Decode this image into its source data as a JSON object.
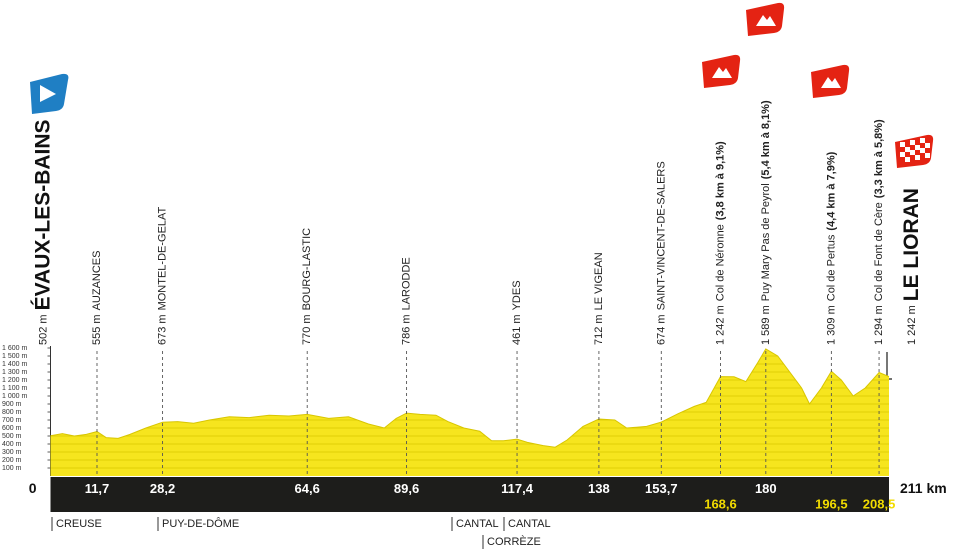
{
  "chart_data": {
    "type": "area",
    "color": "#f6e51e",
    "grid_color": "#d9c800",
    "band_color": "#1d1d1b",
    "x": [
      0,
      3,
      6,
      9,
      11.7,
      14,
      17,
      20,
      24,
      28.2,
      32,
      36,
      40,
      45,
      50,
      55,
      60,
      64.6,
      70,
      75,
      80,
      84,
      87,
      89.6,
      93,
      97,
      100,
      104,
      108,
      111,
      114,
      117.4,
      120,
      124,
      127,
      130,
      134,
      138,
      142,
      145,
      150,
      153.7,
      158,
      162,
      165,
      168.6,
      172,
      175,
      178,
      180,
      183,
      186,
      189,
      191,
      194,
      196.5,
      199,
      202,
      205,
      208.5,
      211
    ],
    "values": [
      502,
      530,
      500,
      520,
      555,
      480,
      470,
      520,
      600,
      673,
      680,
      660,
      700,
      740,
      730,
      760,
      750,
      770,
      720,
      740,
      650,
      600,
      720,
      786,
      770,
      760,
      680,
      600,
      560,
      440,
      440,
      461,
      420,
      380,
      360,
      450,
      620,
      712,
      700,
      600,
      620,
      674,
      780,
      870,
      920,
      1242,
      1240,
      1180,
      1420,
      1589,
      1500,
      1300,
      1100,
      900,
      1100,
      1309,
      1200,
      1000,
      1100,
      1294,
      1242
    ],
    "xlim": [
      0,
      211
    ],
    "xticks": [
      {
        "value": 0,
        "label": "0"
      },
      {
        "value": 211,
        "label": "211 km"
      }
    ],
    "ylim": [
      0,
      1600
    ],
    "yticks": [
      {
        "value": 100,
        "label": "100 m"
      },
      {
        "value": 200,
        "label": "200 m"
      },
      {
        "value": 300,
        "label": "300 m"
      },
      {
        "value": 400,
        "label": "400 m"
      },
      {
        "value": 500,
        "label": "500 m"
      },
      {
        "value": 600,
        "label": "600 m"
      },
      {
        "value": 700,
        "label": "700 m"
      },
      {
        "value": 800,
        "label": "800 m"
      },
      {
        "value": 900,
        "label": "900 m"
      },
      {
        "value": 1000,
        "label": "1 000 m"
      },
      {
        "value": 1100,
        "label": "1 100 m"
      },
      {
        "value": 1200,
        "label": "1 200 m"
      },
      {
        "value": 1300,
        "label": "1 300 m"
      },
      {
        "value": 1400,
        "label": "1 400 m"
      },
      {
        "value": 1500,
        "label": "1 500 m"
      },
      {
        "value": 1600,
        "label": "1 600 m"
      }
    ],
    "grid": true,
    "start": {
      "altitude": "502 m",
      "name": "ÉVAUX-LES-BAINS"
    },
    "finish": {
      "altitude": "1 242 m",
      "name": "LE LIORAN"
    },
    "waypoints": [
      {
        "km": {
          "value": 11.7,
          "label": "11,7"
        },
        "altitude": "555 m",
        "name": "AUZANCES"
      },
      {
        "km": {
          "value": 28.2,
          "label": "28,2"
        },
        "altitude": "673 m",
        "name": "MONTEL-DE-GELAT"
      },
      {
        "km": {
          "value": 64.6,
          "label": "64,6"
        },
        "altitude": "770 m",
        "name": "BOURG-LASTIC"
      },
      {
        "km": {
          "value": 89.6,
          "label": "89,6"
        },
        "altitude": "786 m",
        "name": "LARODDE"
      },
      {
        "km": {
          "value": 117.4,
          "label": "117,4"
        },
        "altitude": "461 m",
        "name": "YDES"
      },
      {
        "km": 138,
        "altitude": "712 m",
        "name": "LE VIGEAN"
      },
      {
        "km": {
          "value": 153.7,
          "label": "153,7"
        },
        "altitude": "674 m",
        "name": "SAINT-VINCENT-DE-SALERS"
      },
      {
        "km": {
          "value": 168.6,
          "label": "168,6"
        },
        "altitude": "1 242 m",
        "name": "Col de Néronne",
        "detail": "(3,8 km à 9,1%)"
      },
      {
        "km": 180,
        "altitude": "1 589 m",
        "name": "Puy Mary Pas de Peyrol",
        "detail": "(5,4 km à 8,1%)"
      },
      {
        "km": {
          "value": 196.5,
          "label": "196,5"
        },
        "altitude": "1 309 m",
        "name": "Col de Pertus",
        "detail": "(4,4 km à 7,9%)"
      },
      {
        "km": {
          "value": 208.5,
          "label": "208,5"
        },
        "altitude": "1 294 m",
        "name": "Col de Font de Cère",
        "detail": "(3,3 km à 5,8%)"
      }
    ]
  },
  "departments": [
    "CREUSE",
    "PUY-DE-DÔME",
    "CANTAL",
    "CANTAL",
    "CORRÈZE"
  ]
}
